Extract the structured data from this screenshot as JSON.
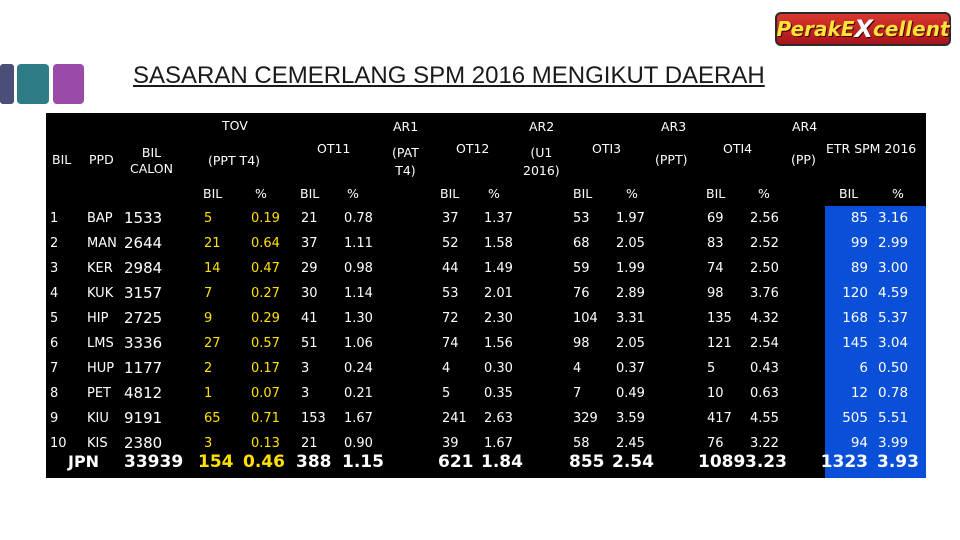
{
  "title": "SASARAN CEMERLANG SPM 2016 MENGIKUT DAERAH",
  "logo": {
    "left": "PerakE",
    "x": "X",
    "right": "cellent"
  },
  "header": {
    "bil": "BIL",
    "ppd": "PPD",
    "bil_calon": "BIL\nCALON",
    "tov": "TOV",
    "ppt_t4": "(PPT T4)",
    "ot11": "OT11",
    "ar1": "AR1",
    "ar1_sub": "(PAT\nT4)",
    "ot12": "OT12",
    "ar2": "AR2",
    "ar2_sub": "(U1\n2016)",
    "oti3": "OTI3",
    "ar3": "AR3",
    "ar3_sub": "(PPT)",
    "oti4": "OTI4",
    "ar4": "AR4",
    "ar4_sub": "(PP)",
    "etr": "ETR SPM 2016",
    "sub_bil": "BIL",
    "sub_pct": "%"
  },
  "rows": [
    {
      "no": "1",
      "ppd": "BAP",
      "calon": "1533",
      "tov": [
        "5",
        "0.19"
      ],
      "ot11": [
        "21",
        "0.78"
      ],
      "ot12": [
        "37",
        "1.37"
      ],
      "oti3": [
        "53",
        "1.97"
      ],
      "oti4": [
        "69",
        "2.56"
      ],
      "etr": [
        "85",
        "3.16"
      ]
    },
    {
      "no": "2",
      "ppd": "MAN",
      "calon": "2644",
      "tov": [
        "21",
        "0.64"
      ],
      "ot11": [
        "37",
        "1.11"
      ],
      "ot12": [
        "52",
        "1.58"
      ],
      "oti3": [
        "68",
        "2.05"
      ],
      "oti4": [
        "83",
        "2.52"
      ],
      "etr": [
        "99",
        "2.99"
      ]
    },
    {
      "no": "3",
      "ppd": "KER",
      "calon": "2984",
      "tov": [
        "14",
        "0.47"
      ],
      "ot11": [
        "29",
        "0.98"
      ],
      "ot12": [
        "44",
        "1.49"
      ],
      "oti3": [
        "59",
        "1.99"
      ],
      "oti4": [
        "74",
        "2.50"
      ],
      "etr": [
        "89",
        "3.00"
      ]
    },
    {
      "no": "4",
      "ppd": "KUK",
      "calon": "3157",
      "tov": [
        "7",
        "0.27"
      ],
      "ot11": [
        "30",
        "1.14"
      ],
      "ot12": [
        "53",
        "2.01"
      ],
      "oti3": [
        "76",
        "2.89"
      ],
      "oti4": [
        "98",
        "3.76"
      ],
      "etr": [
        "120",
        "4.59"
      ]
    },
    {
      "no": "5",
      "ppd": "HIP",
      "calon": "2725",
      "tov": [
        "9",
        "0.29"
      ],
      "ot11": [
        "41",
        "1.30"
      ],
      "ot12": [
        "72",
        "2.30"
      ],
      "oti3": [
        "104",
        "3.31"
      ],
      "oti4": [
        "135",
        "4.32"
      ],
      "etr": [
        "168",
        "5.37"
      ]
    },
    {
      "no": "6",
      "ppd": "LMS",
      "calon": "3336",
      "tov": [
        "27",
        "0.57"
      ],
      "ot11": [
        "51",
        "1.06"
      ],
      "ot12": [
        "74",
        "1.56"
      ],
      "oti3": [
        "98",
        "2.05"
      ],
      "oti4": [
        "121",
        "2.54"
      ],
      "etr": [
        "145",
        "3.04"
      ]
    },
    {
      "no": "7",
      "ppd": "HUP",
      "calon": "1177",
      "tov": [
        "2",
        "0.17"
      ],
      "ot11": [
        "3",
        "0.24"
      ],
      "ot12": [
        "4",
        "0.30"
      ],
      "oti3": [
        "4",
        "0.37"
      ],
      "oti4": [
        "5",
        "0.43"
      ],
      "etr": [
        "6",
        "0.50"
      ]
    },
    {
      "no": "8",
      "ppd": "PET",
      "calon": "4812",
      "tov": [
        "1",
        "0.07"
      ],
      "ot11": [
        "3",
        "0.21"
      ],
      "ot12": [
        "5",
        "0.35"
      ],
      "oti3": [
        "7",
        "0.49"
      ],
      "oti4": [
        "10",
        "0.63"
      ],
      "etr": [
        "12",
        "0.78"
      ]
    },
    {
      "no": "9",
      "ppd": "KIU",
      "calon": "9191",
      "tov": [
        "65",
        "0.71"
      ],
      "ot11": [
        "153",
        "1.67"
      ],
      "ot12": [
        "241",
        "2.63"
      ],
      "oti3": [
        "329",
        "3.59"
      ],
      "oti4": [
        "417",
        "4.55"
      ],
      "etr": [
        "505",
        "5.51"
      ]
    },
    {
      "no": "10",
      "ppd": "KIS",
      "calon": "2380",
      "tov": [
        "3",
        "0.13"
      ],
      "ot11": [
        "21",
        "0.90"
      ],
      "ot12": [
        "39",
        "1.67"
      ],
      "oti3": [
        "58",
        "2.45"
      ],
      "oti4": [
        "76",
        "3.22"
      ],
      "etr": [
        "94",
        "3.99"
      ]
    }
  ],
  "total": {
    "label": "JPN",
    "calon": "33939",
    "tov": [
      "154",
      "0.46"
    ],
    "ot11": [
      "388",
      "1.15"
    ],
    "ot12": [
      "621",
      "1.84"
    ],
    "oti3": [
      "855",
      "2.54"
    ],
    "oti4": [
      "1089",
      "3.23"
    ],
    "etr": [
      "1323",
      "3.93"
    ]
  },
  "colors": {
    "table_bg": "#000000",
    "etr_bg": "#0a4fd8",
    "tov_text": "#ffe000",
    "title": "#1a1a1a"
  }
}
